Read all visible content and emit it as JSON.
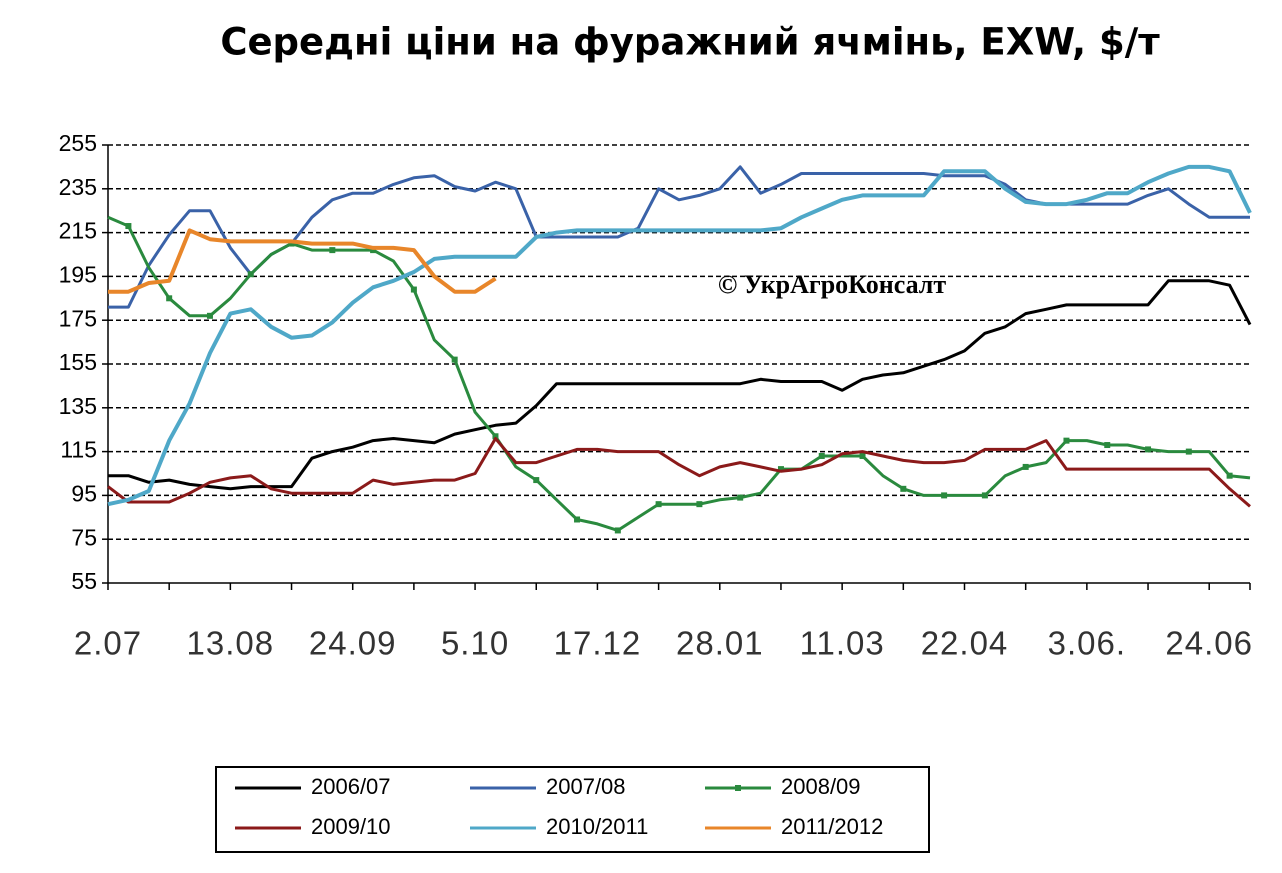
{
  "chart_data": {
    "type": "line",
    "title": "Середні ціни на фуражний ячмінь, EXW, $/т",
    "annotation": "© УкрАгроКонсалт",
    "categories": [
      "2.07",
      null,
      null,
      null,
      null,
      null,
      "13.08",
      null,
      null,
      null,
      null,
      null,
      "24.09",
      null,
      null,
      null,
      null,
      null,
      "5.10",
      null,
      null,
      null,
      null,
      null,
      "17.12",
      null,
      null,
      null,
      null,
      null,
      "28.01",
      null,
      null,
      null,
      null,
      null,
      "11.03",
      null,
      null,
      null,
      null,
      null,
      "22.04",
      null,
      null,
      null,
      null,
      null,
      "3.06.",
      null,
      null,
      null,
      null,
      null,
      "24.06",
      null,
      null
    ],
    "ylim": [
      55,
      255
    ],
    "yticks": [
      55,
      75,
      95,
      115,
      135,
      155,
      175,
      195,
      215,
      235,
      255
    ],
    "grid": true,
    "series": [
      {
        "name": "2006/07",
        "color": "#000000",
        "values": [
          104,
          104,
          101,
          102,
          100,
          99,
          98,
          99,
          99,
          99,
          112,
          115,
          117,
          120,
          121,
          120,
          119,
          123,
          125,
          127,
          128,
          136,
          146,
          146,
          146,
          146,
          146,
          146,
          146,
          146,
          146,
          146,
          148,
          147,
          147,
          147,
          143,
          148,
          150,
          151,
          154,
          157,
          161,
          169,
          172,
          178,
          180,
          182,
          182,
          182,
          182,
          182,
          193,
          193,
          193,
          191,
          173
        ]
      },
      {
        "name": "2007/08",
        "color": "#3a62a8",
        "values": [
          181,
          181,
          200,
          214,
          225,
          225,
          208,
          196,
          205,
          210,
          222,
          230,
          233,
          233,
          237,
          240,
          241,
          236,
          234,
          238,
          235,
          213,
          213,
          213,
          213,
          213,
          217,
          235,
          230,
          232,
          235,
          245,
          233,
          237,
          242,
          242,
          242,
          242,
          242,
          242,
          242,
          241,
          241,
          241,
          237,
          230,
          228,
          228,
          228,
          228,
          228,
          232,
          235,
          228,
          222,
          222,
          222
        ]
      },
      {
        "name": "2008/09",
        "color": "#2a8a3e",
        "markers": true,
        "values": [
          222,
          218,
          199,
          185,
          177,
          177,
          185,
          196,
          205,
          210,
          207,
          207,
          207,
          207,
          202,
          189,
          166,
          157,
          133,
          122,
          108,
          102,
          93,
          84,
          82,
          79,
          85,
          91,
          91,
          91,
          93,
          94,
          96,
          107,
          107,
          113,
          113,
          113,
          104,
          98,
          95,
          95,
          95,
          95,
          104,
          108,
          110,
          120,
          120,
          118,
          118,
          116,
          115,
          115,
          115,
          104,
          103
        ]
      },
      {
        "name": "2009/10",
        "color": "#8b1a1a",
        "values": [
          99,
          92,
          92,
          92,
          96,
          101,
          103,
          104,
          98,
          96,
          96,
          96,
          96,
          102,
          100,
          101,
          102,
          102,
          105,
          121,
          110,
          110,
          113,
          116,
          116,
          115,
          115,
          115,
          109,
          104,
          108,
          110,
          108,
          106,
          107,
          109,
          114,
          115,
          113,
          111,
          110,
          110,
          111,
          116,
          116,
          116,
          120,
          107,
          107,
          107,
          107,
          107,
          107,
          107,
          107,
          98,
          90
        ]
      },
      {
        "name": "2010/2011",
        "color": "#4fa8c8",
        "width": 4,
        "values": [
          91,
          93,
          97,
          120,
          137,
          160,
          178,
          180,
          172,
          167,
          168,
          174,
          183,
          190,
          193,
          197,
          203,
          204,
          204,
          204,
          204,
          213,
          215,
          216,
          216,
          216,
          216,
          216,
          216,
          216,
          216,
          216,
          216,
          217,
          222,
          226,
          230,
          232,
          232,
          232,
          232,
          243,
          243,
          243,
          235,
          229,
          228,
          228,
          230,
          233,
          233,
          238,
          242,
          245,
          245,
          243,
          224
        ]
      },
      {
        "name": "2011/2012",
        "color": "#e8862a",
        "width": 4,
        "values": [
          188,
          188,
          192,
          193,
          216,
          212,
          211,
          211,
          211,
          211,
          210,
          210,
          210,
          208,
          208,
          207,
          195,
          188,
          188,
          194,
          null,
          null,
          null,
          null,
          null,
          null,
          null,
          null,
          null,
          null,
          null,
          null,
          null,
          null,
          null,
          null,
          null,
          null,
          null,
          null,
          null,
          null,
          null,
          null,
          null,
          null,
          null,
          null,
          null,
          null,
          null,
          null,
          null,
          null,
          null,
          null,
          null
        ]
      }
    ]
  }
}
